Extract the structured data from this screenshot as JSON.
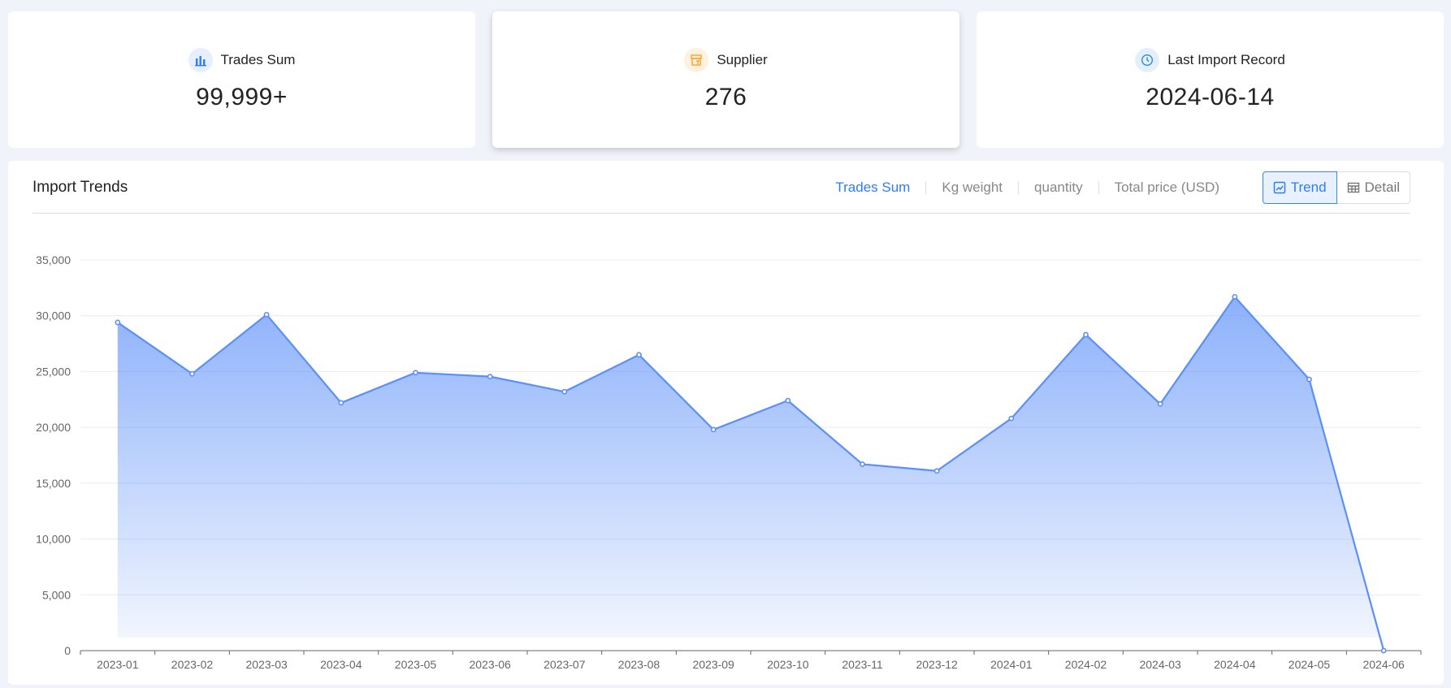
{
  "cards": [
    {
      "label": "Trades Sum",
      "value": "99,999+",
      "icon": "bar-chart-icon",
      "color": "#2f7cf6"
    },
    {
      "label": "Supplier",
      "value": "276",
      "icon": "store-icon",
      "color": "#f5a623"
    },
    {
      "label": "Last Import Record",
      "value": "2024-06-14",
      "icon": "clock-icon",
      "color": "#2f8ad8"
    }
  ],
  "panel": {
    "title": "Import Trends",
    "metrics": [
      "Trades Sum",
      "Kg weight",
      "quantity",
      "Total price (USD)"
    ],
    "active_metric": "Trades Sum",
    "views": {
      "trend": "Trend",
      "detail": "Detail"
    },
    "active_view": "Trend"
  },
  "chart_data": {
    "type": "area",
    "categories": [
      "2023-01",
      "2023-02",
      "2023-03",
      "2023-04",
      "2023-05",
      "2023-06",
      "2023-07",
      "2023-08",
      "2023-09",
      "2023-10",
      "2023-11",
      "2023-12",
      "2024-01",
      "2024-02",
      "2024-03",
      "2024-04",
      "2024-05",
      "2024-06"
    ],
    "values": [
      29400,
      24800,
      30100,
      22200,
      24900,
      24550,
      23200,
      26500,
      19800,
      22400,
      16700,
      16100,
      20800,
      28300,
      22100,
      31700,
      24300,
      0
    ],
    "ylim": [
      0,
      35000
    ],
    "yticks": [
      "0",
      "5,000",
      "10,000",
      "15,000",
      "20,000",
      "25,000",
      "30,000",
      "35,000"
    ],
    "grid": true,
    "color": "#5b8ff9"
  }
}
